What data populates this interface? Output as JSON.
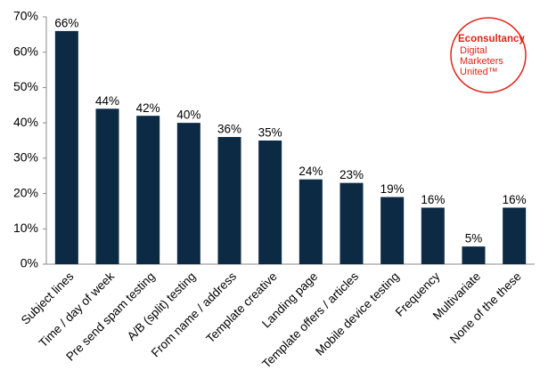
{
  "chart_data": {
    "type": "bar",
    "categories": [
      "Subject lines",
      "Time / day of week",
      "Pre send spam testing",
      "A/B (split) testing",
      "From name / address",
      "Template creative",
      "Landing page",
      "Template offers / articles",
      "Mobile device testing",
      "Frequency",
      "Multivariate",
      "None of the these"
    ],
    "values": [
      66,
      44,
      42,
      40,
      36,
      35,
      24,
      23,
      19,
      16,
      5,
      16
    ],
    "value_labels": [
      "66%",
      "44%",
      "42%",
      "40%",
      "36%",
      "35%",
      "24%",
      "23%",
      "19%",
      "16%",
      "5%",
      "16%"
    ],
    "color": "#0c2a44",
    "ylim": [
      0,
      70
    ],
    "yticks": [
      {
        "value": 0,
        "label": "0%"
      },
      {
        "value": 10,
        "label": "10%"
      },
      {
        "value": 20,
        "label": "20%"
      },
      {
        "value": 30,
        "label": "30%"
      },
      {
        "value": 40,
        "label": "40%"
      },
      {
        "value": 50,
        "label": "50%"
      },
      {
        "value": 60,
        "label": "60%"
      },
      {
        "value": 70,
        "label": "70%"
      }
    ],
    "grid": false
  },
  "logo": {
    "name": "Econsultancy",
    "tagline": [
      "Digital",
      "Marketers",
      "United™"
    ]
  }
}
